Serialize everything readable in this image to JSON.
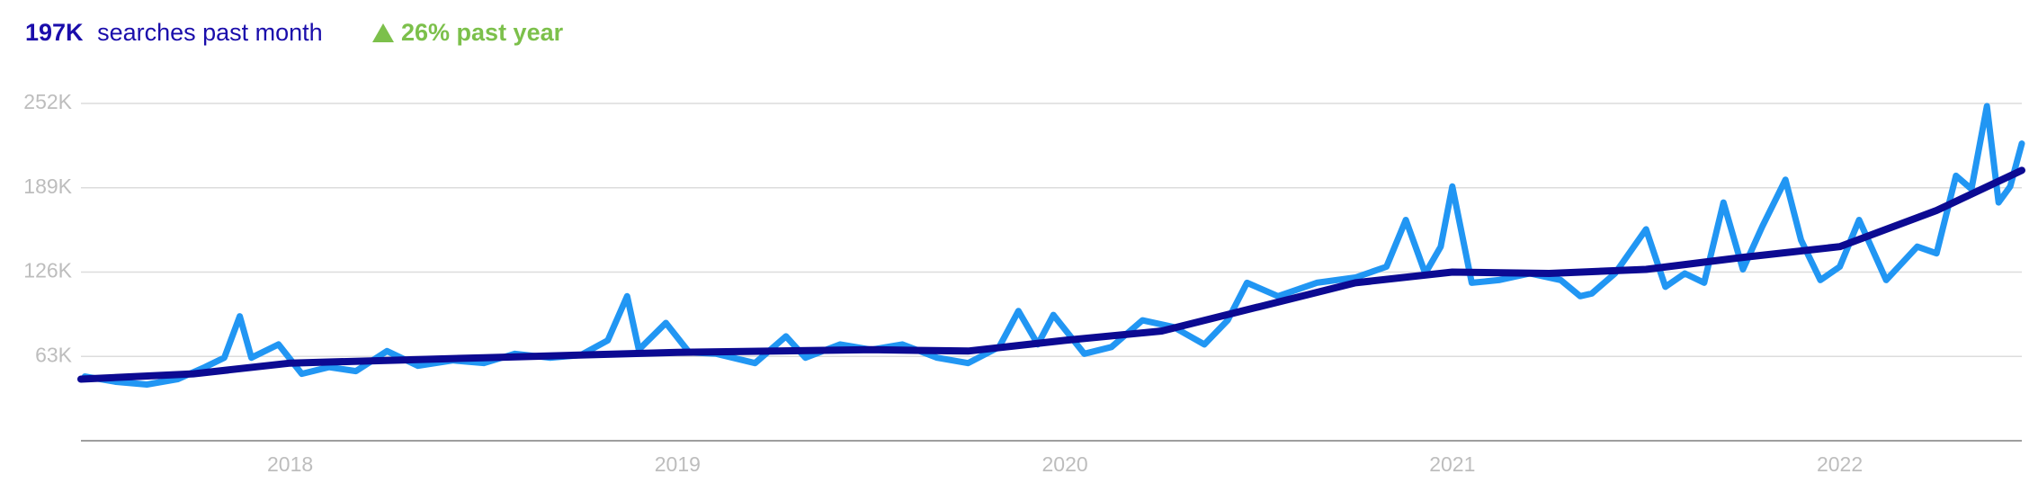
{
  "chart_data": {
    "type": "line",
    "headline_value": "197K",
    "title": "searches past month",
    "annotation": "26% past year",
    "xlim": [
      2017.46,
      2022.47
    ],
    "xticks": [
      2018,
      2019,
      2020,
      2021,
      2022
    ],
    "ylim": [
      0,
      252000
    ],
    "yticks": [
      {
        "value": 63000,
        "label": "63K"
      },
      {
        "value": 126000,
        "label": "126K"
      },
      {
        "value": 189000,
        "label": "189K"
      },
      {
        "value": 252000,
        "label": "252K"
      }
    ],
    "grid": true,
    "series": [
      {
        "color": "#2196f3",
        "x": [
          2017.47,
          2017.55,
          2017.63,
          2017.71,
          2017.78,
          2017.83,
          2017.87,
          2017.9,
          2017.97,
          2018.03,
          2018.1,
          2018.17,
          2018.25,
          2018.33,
          2018.42,
          2018.5,
          2018.58,
          2018.67,
          2018.75,
          2018.82,
          2018.87,
          2018.9,
          2018.97,
          2019.03,
          2019.1,
          2019.2,
          2019.28,
          2019.33,
          2019.42,
          2019.5,
          2019.58,
          2019.67,
          2019.75,
          2019.83,
          2019.88,
          2019.93,
          2019.97,
          2020.05,
          2020.12,
          2020.2,
          2020.28,
          2020.36,
          2020.42,
          2020.47,
          2020.55,
          2020.65,
          2020.75,
          2020.83,
          2020.88,
          2020.93,
          2020.97,
          2021.0,
          2021.05,
          2021.12,
          2021.2,
          2021.28,
          2021.33,
          2021.36,
          2021.42,
          2021.5,
          2021.55,
          2021.6,
          2021.65,
          2021.7,
          2021.75,
          2021.8,
          2021.86,
          2021.9,
          2021.95,
          2022.0,
          2022.05,
          2022.12,
          2022.2,
          2022.25,
          2022.3,
          2022.34,
          2022.38,
          2022.41,
          2022.44,
          2022.47
        ],
        "values": [
          48000,
          44000,
          42000,
          46000,
          55000,
          62000,
          93000,
          62000,
          72000,
          50000,
          55000,
          52000,
          67000,
          56000,
          60000,
          58000,
          65000,
          62000,
          64000,
          75000,
          108000,
          68000,
          88000,
          66000,
          65000,
          58000,
          78000,
          62000,
          72000,
          68000,
          72000,
          62000,
          58000,
          70000,
          97000,
          72000,
          94000,
          65000,
          70000,
          90000,
          85000,
          72000,
          90000,
          118000,
          108000,
          118000,
          122000,
          130000,
          165000,
          125000,
          145000,
          190000,
          118000,
          120000,
          125000,
          120000,
          108000,
          110000,
          125000,
          158000,
          115000,
          125000,
          118000,
          178000,
          128000,
          160000,
          195000,
          150000,
          120000,
          130000,
          165000,
          120000,
          145000,
          140000,
          198000,
          188000,
          250000,
          178000,
          190000,
          222000
        ]
      },
      {
        "color": "#0c0a92",
        "x": [
          2017.46,
          2017.75,
          2018.0,
          2018.5,
          2019.0,
          2019.5,
          2019.75,
          2020.0,
          2020.25,
          2020.5,
          2020.75,
          2021.0,
          2021.25,
          2021.5,
          2021.75,
          2022.0,
          2022.25,
          2022.47
        ],
        "values": [
          46000,
          50000,
          58000,
          62000,
          66000,
          68000,
          67000,
          75000,
          82000,
          100000,
          118000,
          126000,
          125000,
          128000,
          137000,
          145000,
          172000,
          202000
        ]
      }
    ]
  }
}
